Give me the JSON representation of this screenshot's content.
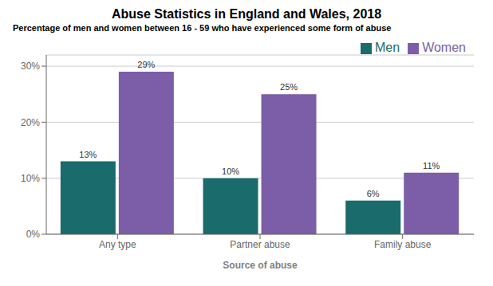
{
  "chart_data": {
    "type": "bar",
    "title": "Abuse Statistics in England and Wales, 2018",
    "subtitle": "Percentage of men and women between 16 - 59 who have experienced some form of abuse",
    "xlabel": "Source of abuse",
    "categories": [
      "Any type",
      "Partner abuse",
      "Family abuse"
    ],
    "series": [
      {
        "name": "Men",
        "color": "#1a6b6b",
        "values": [
          13,
          10,
          6
        ],
        "value_labels": [
          "13%",
          "10%",
          "6%"
        ]
      },
      {
        "name": "Women",
        "color": "#7b5ea7",
        "values": [
          29,
          25,
          11
        ],
        "value_labels": [
          "29%",
          "25%",
          "11%"
        ]
      }
    ],
    "ylim": [
      0,
      32
    ],
    "yticks": [
      {
        "value": 0,
        "label": "0%"
      },
      {
        "value": 10,
        "label": "10%"
      },
      {
        "value": 20,
        "label": "20%"
      },
      {
        "value": 30,
        "label": "30%"
      }
    ],
    "grid": true,
    "legend": "top-right",
    "data_labels": true
  }
}
